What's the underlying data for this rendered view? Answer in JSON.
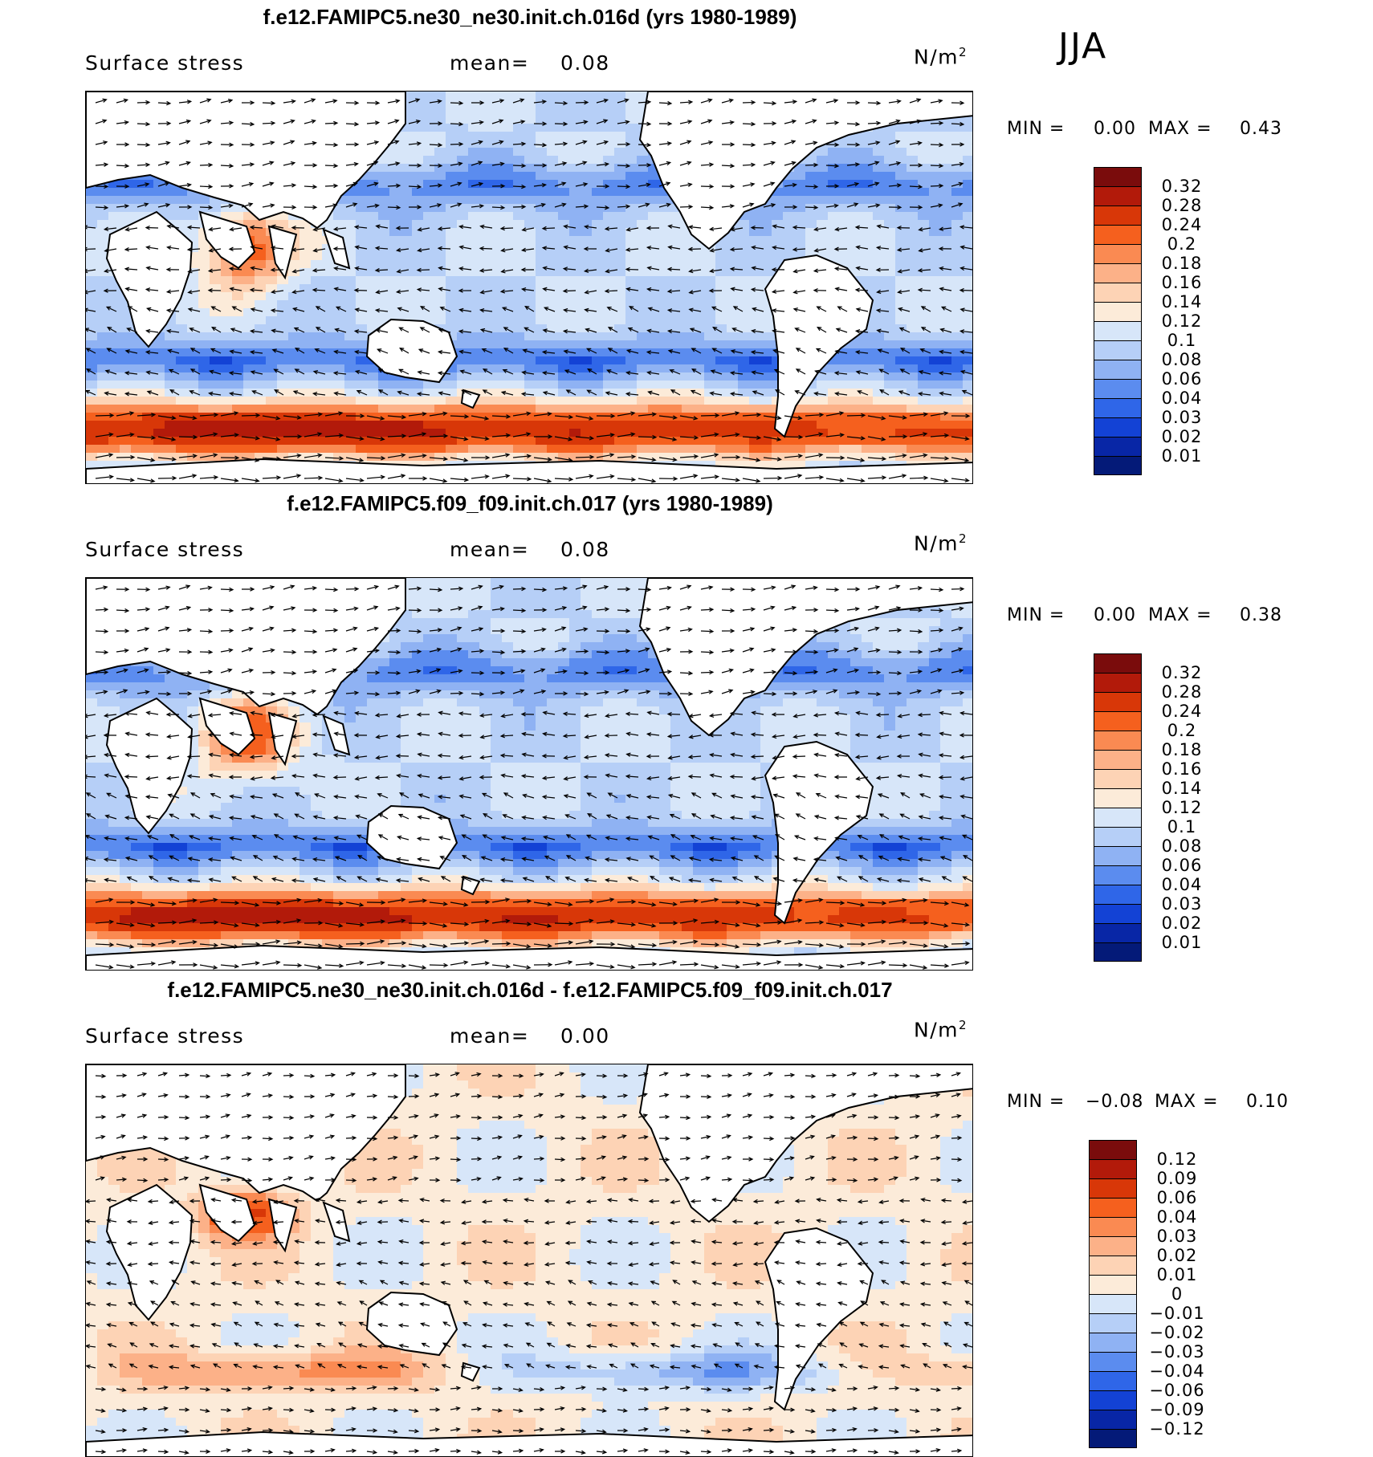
{
  "season": "JJA",
  "panels": [
    {
      "title": "f.e12.FAMIPC5.ne30_ne30.init.ch.016d (yrs 1980-1989)",
      "variable": "Surface stress",
      "mean_label": "mean=",
      "mean_value": "0.08",
      "units": "N/m",
      "units_sup": "2",
      "min_label": "MIN =",
      "min_value": "0.00",
      "max_label": "MAX =",
      "max_value": "0.43",
      "colorbar": {
        "labels": [
          "0.32",
          "0.28",
          "0.24",
          "0.2",
          "0.18",
          "0.16",
          "0.14",
          "0.12",
          "0.1",
          "0.08",
          "0.06",
          "0.04",
          "0.03",
          "0.02",
          "0.01"
        ],
        "colors": [
          "#7a0c0c",
          "#b21a0a",
          "#d83708",
          "#f5601e",
          "#fa8a52",
          "#fcb188",
          "#fdd3b5",
          "#fcebd9",
          "#d7e6f9",
          "#b6cff7",
          "#8fb2f3",
          "#5b8cef",
          "#2f66e8",
          "#1342d5",
          "#0826a6",
          "#041a78"
        ]
      },
      "palette": "abs"
    },
    {
      "title": "f.e12.FAMIPC5.f09_f09.init.ch.017 (yrs 1980-1989)",
      "variable": "Surface stress",
      "mean_label": "mean=",
      "mean_value": "0.08",
      "units": "N/m",
      "units_sup": "2",
      "min_label": "MIN =",
      "min_value": "0.00",
      "max_label": "MAX =",
      "max_value": "0.38",
      "colorbar": {
        "labels": [
          "0.32",
          "0.28",
          "0.24",
          "0.2",
          "0.18",
          "0.16",
          "0.14",
          "0.12",
          "0.1",
          "0.08",
          "0.06",
          "0.04",
          "0.03",
          "0.02",
          "0.01"
        ],
        "colors": [
          "#7a0c0c",
          "#b21a0a",
          "#d83708",
          "#f5601e",
          "#fa8a52",
          "#fcb188",
          "#fdd3b5",
          "#fcebd9",
          "#d7e6f9",
          "#b6cff7",
          "#8fb2f3",
          "#5b8cef",
          "#2f66e8",
          "#1342d5",
          "#0826a6",
          "#041a78"
        ]
      },
      "palette": "abs"
    },
    {
      "title": "f.e12.FAMIPC5.ne30_ne30.init.ch.016d - f.e12.FAMIPC5.f09_f09.init.ch.017",
      "variable": "Surface stress",
      "mean_label": "mean=",
      "mean_value": "0.00",
      "units": "N/m",
      "units_sup": "2",
      "min_label": "MIN =",
      "min_value": "−0.08",
      "max_label": "MAX =",
      "max_value": "0.10",
      "colorbar": {
        "labels": [
          "0.12",
          "0.09",
          "0.06",
          "0.04",
          "0.03",
          "0.02",
          "0.01",
          "0",
          "−0.01",
          "−0.02",
          "−0.03",
          "−0.04",
          "−0.06",
          "−0.09",
          "−0.12"
        ],
        "colors": [
          "#7a0c0c",
          "#b21a0a",
          "#d83708",
          "#f5601e",
          "#fa8a52",
          "#fcb188",
          "#fdd3b5",
          "#fcebd9",
          "#d7e6f9",
          "#b6cff7",
          "#8fb2f3",
          "#5b8cef",
          "#2f66e8",
          "#1342d5",
          "#0826a6",
          "#041a78"
        ]
      },
      "palette": "diff"
    }
  ]
}
